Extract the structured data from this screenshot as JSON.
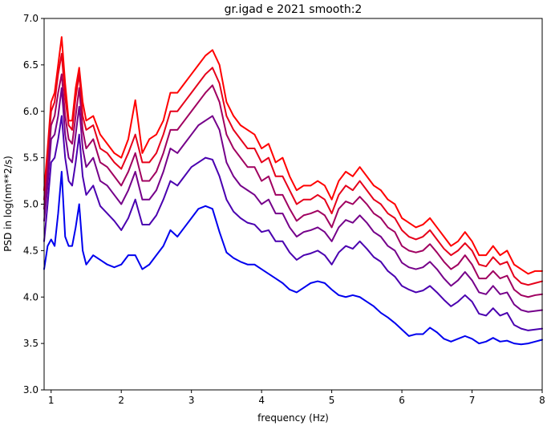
{
  "chart_data": {
    "type": "line",
    "title": "gr.igad e 2021 smooth:2",
    "xlabel": "frequency (Hz)",
    "ylabel": "PSD in log(nm**2/s)",
    "xlim": [
      0.9,
      8.0
    ],
    "ylim": [
      3.0,
      7.0
    ],
    "xticks": [
      1,
      2,
      3,
      4,
      5,
      6,
      7,
      8
    ],
    "xtick_labels": [
      "1",
      "2",
      "3",
      "4",
      "5",
      "6",
      "7",
      "8"
    ],
    "yticks": [
      3.0,
      3.5,
      4.0,
      4.5,
      5.0,
      5.5,
      6.0,
      6.5,
      7.0
    ],
    "ytick_labels": [
      "3.0",
      "3.5",
      "4.0",
      "4.5",
      "5.0",
      "5.5",
      "6.0",
      "6.5",
      "7.0"
    ],
    "grid": false,
    "legend": "none",
    "x": [
      0.9,
      0.95,
      1.0,
      1.05,
      1.1,
      1.15,
      1.2,
      1.25,
      1.3,
      1.35,
      1.4,
      1.45,
      1.5,
      1.6,
      1.7,
      1.8,
      1.9,
      2.0,
      2.1,
      2.2,
      2.3,
      2.4,
      2.5,
      2.6,
      2.7,
      2.8,
      2.9,
      3.0,
      3.1,
      3.2,
      3.3,
      3.4,
      3.5,
      3.6,
      3.7,
      3.8,
      3.9,
      4.0,
      4.1,
      4.2,
      4.3,
      4.4,
      4.5,
      4.6,
      4.7,
      4.8,
      4.9,
      5.0,
      5.1,
      5.2,
      5.3,
      5.4,
      5.5,
      5.6,
      5.7,
      5.8,
      5.9,
      6.0,
      6.1,
      6.2,
      6.3,
      6.4,
      6.5,
      6.6,
      6.7,
      6.8,
      6.9,
      7.0,
      7.1,
      7.2,
      7.3,
      7.4,
      7.5,
      7.6,
      7.7,
      7.8,
      7.9,
      8.0
    ],
    "series": [
      {
        "color": "#ff0000",
        "values": [
          5.15,
          5.6,
          6.1,
          6.2,
          6.5,
          6.8,
          6.3,
          5.9,
          5.9,
          6.25,
          6.47,
          6.1,
          5.9,
          5.95,
          5.75,
          5.65,
          5.55,
          5.5,
          5.7,
          6.12,
          5.55,
          5.7,
          5.75,
          5.9,
          6.2,
          6.2,
          6.3,
          6.4,
          6.5,
          6.6,
          6.66,
          6.5,
          6.1,
          5.95,
          5.85,
          5.8,
          5.75,
          5.6,
          5.65,
          5.45,
          5.5,
          5.3,
          5.15,
          5.2,
          5.2,
          5.25,
          5.2,
          5.05,
          5.25,
          5.35,
          5.3,
          5.4,
          5.3,
          5.2,
          5.15,
          5.05,
          5.0,
          4.85,
          4.8,
          4.75,
          4.78,
          4.85,
          4.75,
          4.65,
          4.55,
          4.6,
          4.7,
          4.6,
          4.45,
          4.45,
          4.55,
          4.45,
          4.5,
          4.35,
          4.3,
          4.25,
          4.28,
          4.28
        ]
      },
      {
        "color": "#e6001a",
        "values": [
          5.05,
          5.5,
          6.0,
          6.1,
          6.4,
          6.62,
          6.15,
          5.85,
          5.8,
          6.15,
          6.4,
          5.95,
          5.8,
          5.85,
          5.6,
          5.55,
          5.45,
          5.38,
          5.55,
          5.75,
          5.45,
          5.45,
          5.55,
          5.75,
          6.0,
          6.0,
          6.1,
          6.2,
          6.3,
          6.4,
          6.47,
          6.3,
          5.95,
          5.8,
          5.7,
          5.6,
          5.6,
          5.45,
          5.5,
          5.3,
          5.3,
          5.15,
          5.0,
          5.05,
          5.05,
          5.1,
          5.05,
          4.9,
          5.1,
          5.2,
          5.15,
          5.25,
          5.15,
          5.05,
          5.0,
          4.9,
          4.85,
          4.72,
          4.65,
          4.62,
          4.65,
          4.72,
          4.62,
          4.52,
          4.45,
          4.5,
          4.58,
          4.5,
          4.35,
          4.33,
          4.43,
          4.35,
          4.38,
          4.22,
          4.15,
          4.13,
          4.15,
          4.17
        ]
      },
      {
        "color": "#a00060",
        "values": [
          4.95,
          5.35,
          5.85,
          5.95,
          6.2,
          6.4,
          5.95,
          5.7,
          5.65,
          5.95,
          6.25,
          5.8,
          5.6,
          5.7,
          5.45,
          5.4,
          5.3,
          5.2,
          5.35,
          5.55,
          5.25,
          5.25,
          5.35,
          5.55,
          5.8,
          5.8,
          5.9,
          6.0,
          6.1,
          6.2,
          6.28,
          6.1,
          5.75,
          5.6,
          5.5,
          5.4,
          5.4,
          5.25,
          5.3,
          5.1,
          5.1,
          4.95,
          4.82,
          4.88,
          4.9,
          4.93,
          4.88,
          4.75,
          4.95,
          5.03,
          5.0,
          5.08,
          5.0,
          4.9,
          4.85,
          4.75,
          4.7,
          4.55,
          4.5,
          4.48,
          4.5,
          4.57,
          4.48,
          4.38,
          4.3,
          4.35,
          4.45,
          4.35,
          4.2,
          4.2,
          4.28,
          4.2,
          4.23,
          4.08,
          4.02,
          4.0,
          4.02,
          4.03
        ]
      },
      {
        "color": "#75008a",
        "values": [
          4.82,
          5.2,
          5.7,
          5.75,
          5.95,
          6.25,
          5.75,
          5.5,
          5.45,
          5.75,
          6.05,
          5.6,
          5.4,
          5.5,
          5.25,
          5.2,
          5.1,
          5.0,
          5.15,
          5.35,
          5.05,
          5.05,
          5.15,
          5.35,
          5.6,
          5.55,
          5.65,
          5.75,
          5.85,
          5.9,
          5.95,
          5.8,
          5.45,
          5.3,
          5.2,
          5.15,
          5.1,
          5.0,
          5.05,
          4.9,
          4.9,
          4.75,
          4.65,
          4.7,
          4.72,
          4.75,
          4.7,
          4.6,
          4.75,
          4.83,
          4.8,
          4.88,
          4.8,
          4.7,
          4.65,
          4.55,
          4.5,
          4.37,
          4.32,
          4.3,
          4.32,
          4.38,
          4.3,
          4.2,
          4.12,
          4.18,
          4.27,
          4.18,
          4.05,
          4.03,
          4.12,
          4.03,
          4.05,
          3.92,
          3.86,
          3.84,
          3.85,
          3.86
        ]
      },
      {
        "color": "#4a00b0",
        "values": [
          4.6,
          5.0,
          5.45,
          5.5,
          5.7,
          5.95,
          5.5,
          5.25,
          5.2,
          5.45,
          5.75,
          5.3,
          5.1,
          5.2,
          4.98,
          4.9,
          4.82,
          4.72,
          4.85,
          5.05,
          4.78,
          4.78,
          4.88,
          5.05,
          5.25,
          5.2,
          5.3,
          5.4,
          5.45,
          5.5,
          5.48,
          5.3,
          5.05,
          4.92,
          4.85,
          4.8,
          4.78,
          4.7,
          4.72,
          4.6,
          4.6,
          4.48,
          4.4,
          4.45,
          4.47,
          4.5,
          4.45,
          4.35,
          4.48,
          4.55,
          4.52,
          4.6,
          4.52,
          4.43,
          4.38,
          4.28,
          4.22,
          4.12,
          4.08,
          4.05,
          4.07,
          4.12,
          4.05,
          3.97,
          3.9,
          3.95,
          4.02,
          3.95,
          3.82,
          3.8,
          3.88,
          3.8,
          3.83,
          3.7,
          3.66,
          3.64,
          3.65,
          3.66
        ]
      },
      {
        "color": "#0000ee",
        "values": [
          4.3,
          4.55,
          4.62,
          4.55,
          4.9,
          5.35,
          4.65,
          4.55,
          4.55,
          4.75,
          5.0,
          4.5,
          4.35,
          4.45,
          4.4,
          4.35,
          4.32,
          4.35,
          4.45,
          4.45,
          4.3,
          4.35,
          4.45,
          4.55,
          4.72,
          4.65,
          4.75,
          4.85,
          4.95,
          4.98,
          4.95,
          4.7,
          4.48,
          4.42,
          4.38,
          4.35,
          4.35,
          4.3,
          4.25,
          4.2,
          4.15,
          4.08,
          4.05,
          4.1,
          4.15,
          4.17,
          4.15,
          4.08,
          4.02,
          4.0,
          4.02,
          4.0,
          3.95,
          3.9,
          3.83,
          3.78,
          3.72,
          3.65,
          3.58,
          3.6,
          3.6,
          3.67,
          3.62,
          3.55,
          3.52,
          3.55,
          3.58,
          3.55,
          3.5,
          3.52,
          3.56,
          3.52,
          3.53,
          3.5,
          3.49,
          3.5,
          3.52,
          3.54
        ]
      }
    ]
  }
}
